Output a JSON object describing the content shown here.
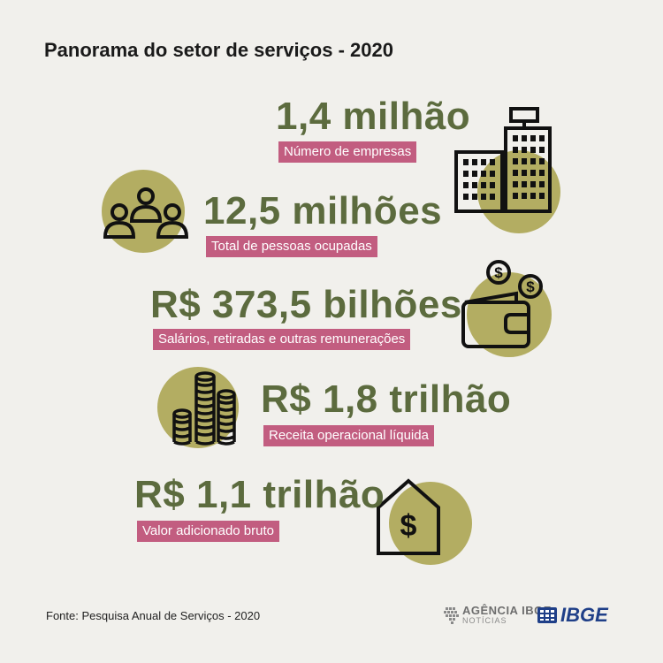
{
  "title": "Panorama do setor de serviços - 2020",
  "items": [
    {
      "value": "1,4 milhão",
      "label": "Número de empresas",
      "icon": "buildings-icon"
    },
    {
      "value": "12,5 milhões",
      "label": "Total de pessoas ocupadas",
      "icon": "people-icon"
    },
    {
      "value": "R$ 373,5 bilhões",
      "label": "Salários, retiradas e outras remunerações",
      "icon": "wallet-icon"
    },
    {
      "value": "R$ 1,8 trilhão",
      "label": "Receita operacional líquida",
      "icon": "coins-icon"
    },
    {
      "value": "R$ 1,1 trilhão",
      "label": "Valor adicionado bruto",
      "icon": "house-dollar-icon"
    }
  ],
  "footer": {
    "source": "Fonte: Pesquisa Anual de Serviços - 2020"
  },
  "logos": {
    "agencia_name": "AGÊNCIA IBGE",
    "agencia_sub": "NOTÍCIAS",
    "ibge": "IBGE"
  },
  "colors": {
    "background": "#f1f0ec",
    "stat_text": "#5c6b3e",
    "label_bg": "#c25d80",
    "circle": "#b3ad62"
  }
}
